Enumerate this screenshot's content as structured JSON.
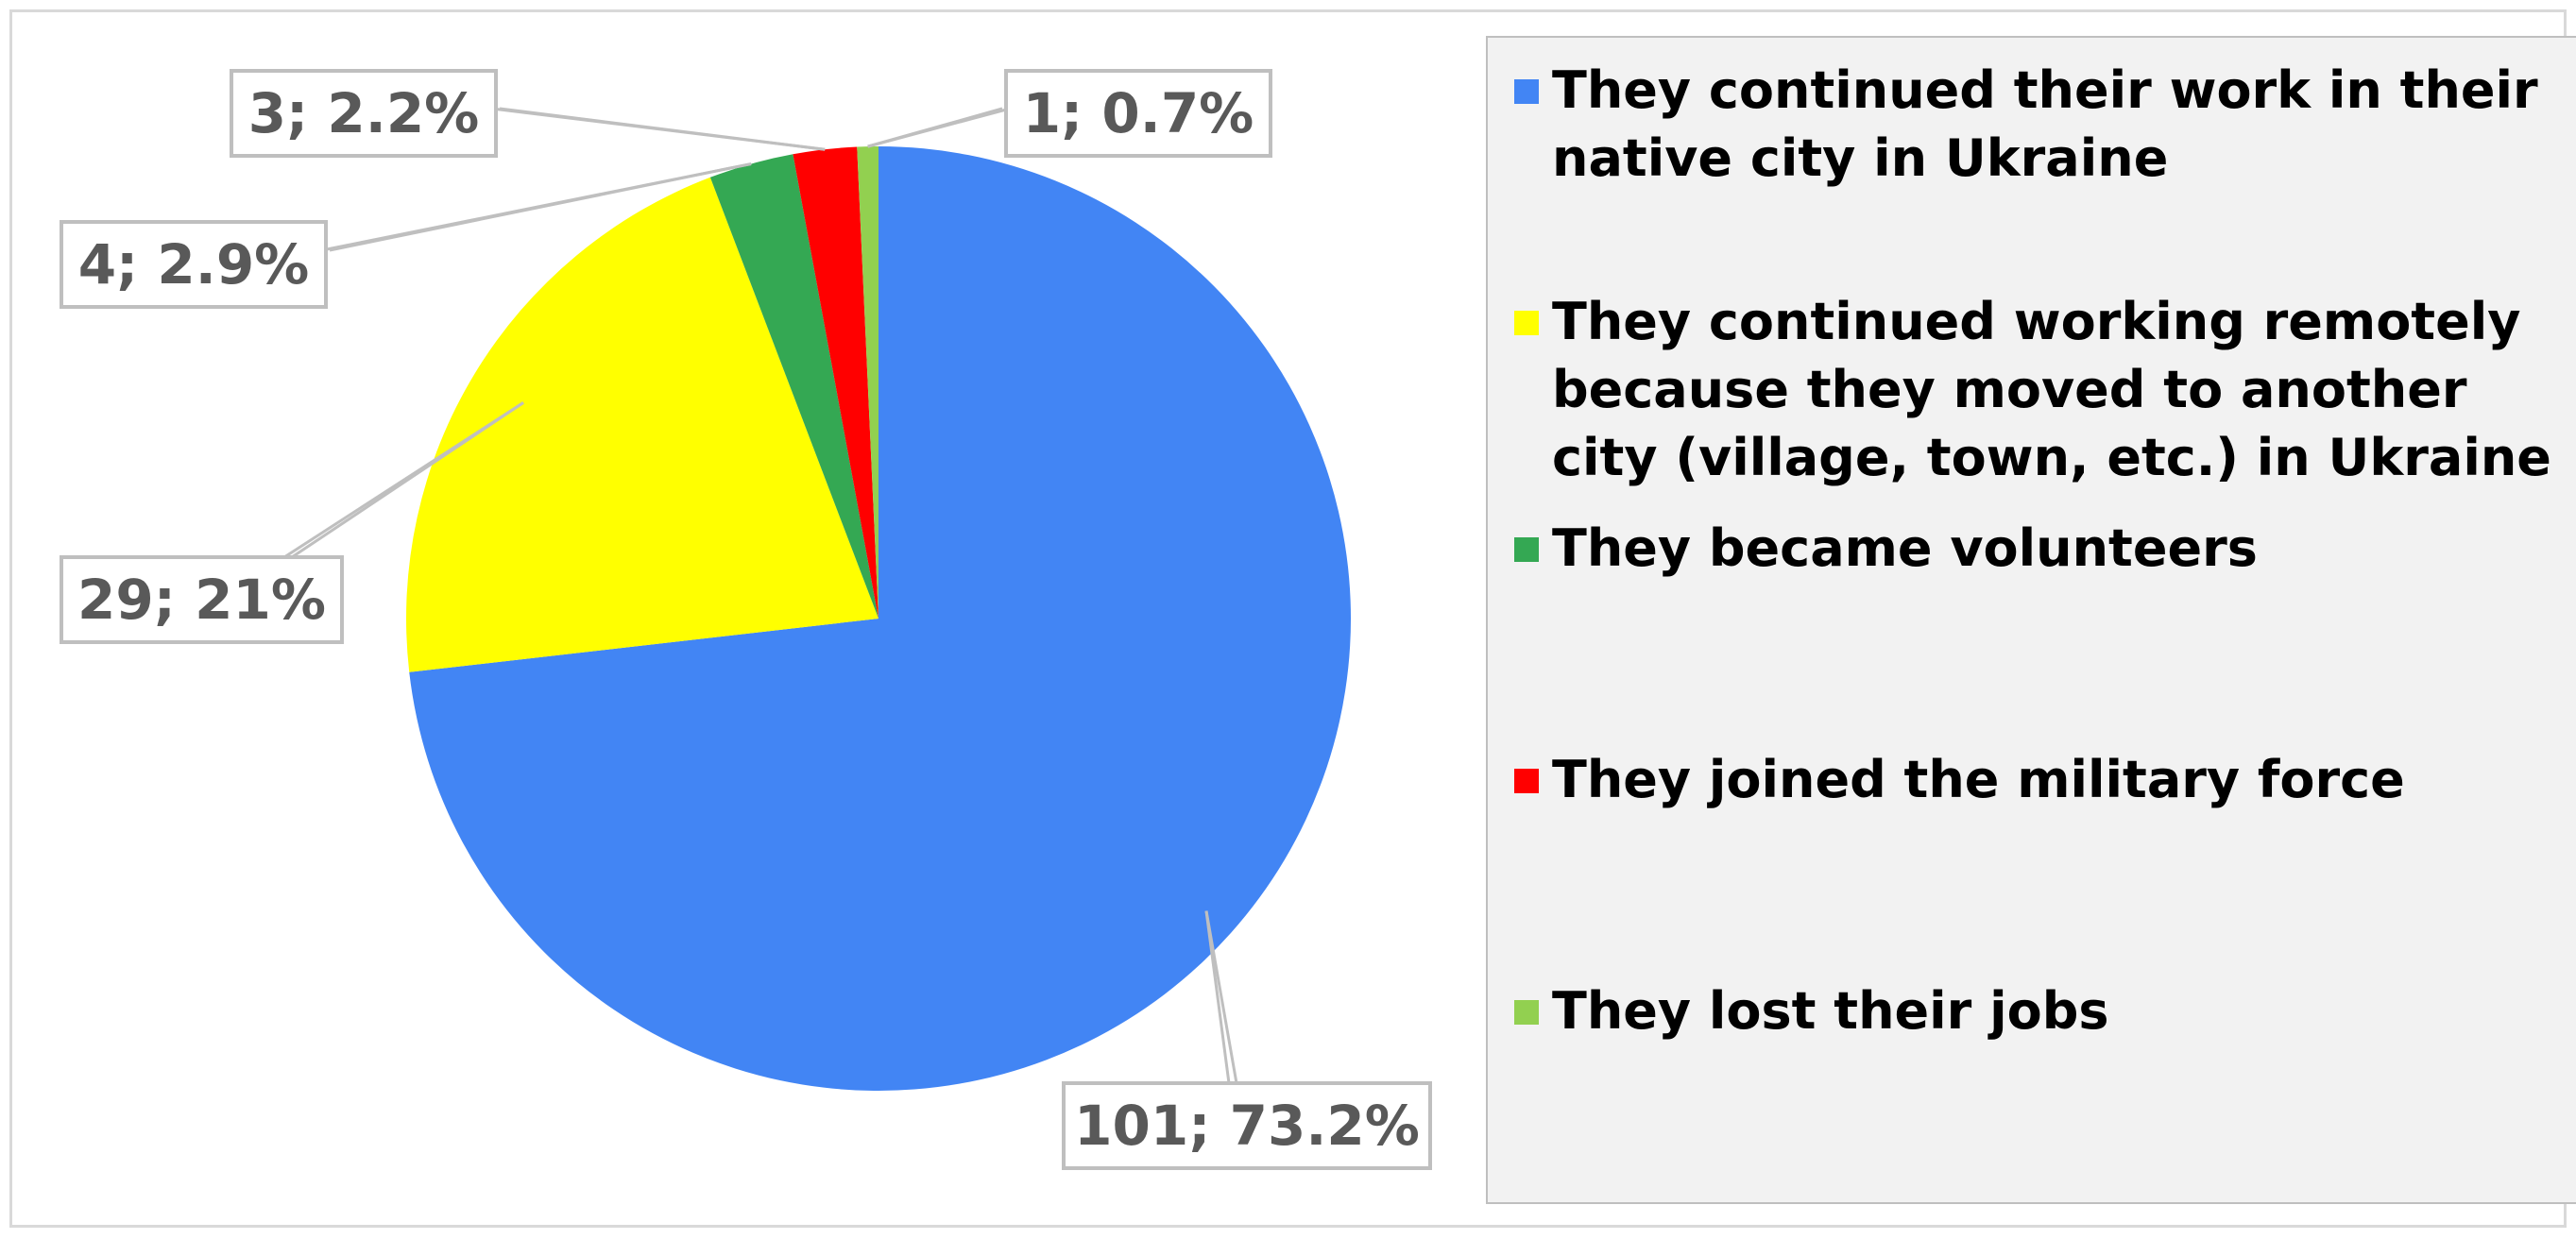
{
  "chart_data": {
    "type": "pie",
    "categories": [
      "They continued their work in their native city in Ukraine",
      "They continued working remotely because they moved to another city (village, town, etc.) in Ukraine",
      "They became volunteers",
      "They joined the military force",
      "They lost their jobs"
    ],
    "values": [
      101,
      29,
      4,
      3,
      1
    ],
    "percent_labels": [
      "73.2%",
      "21%",
      "2.9%",
      "2.2%",
      "0.7%"
    ],
    "data_labels": [
      "101; 73.2%",
      "29; 21%",
      "4; 2.9%",
      "3; 2.2%",
      "1; 0.7%"
    ],
    "colors": [
      "#4285f4",
      "#ffff00",
      "#34a853",
      "#ff0000",
      "#92d050"
    ],
    "start_angle_deg": 0,
    "direction": "clockwise",
    "legend_position": "right"
  }
}
